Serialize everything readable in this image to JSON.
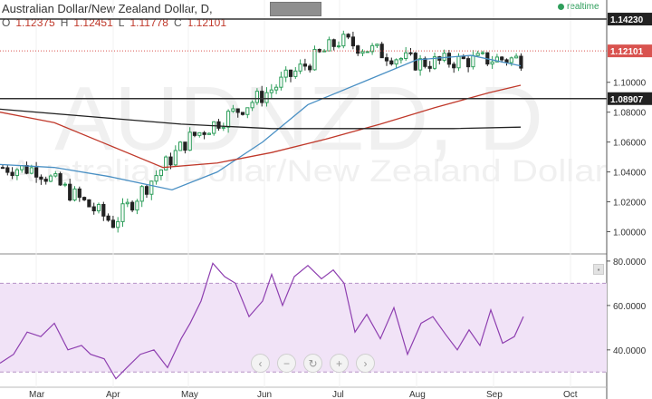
{
  "header": {
    "title": "Australian Dollar/New Zealand Dollar, D,",
    "o_label": "O",
    "o_value": "1.12375",
    "h_label": "H",
    "h_value": "1.12451",
    "l_label": "L",
    "l_value": "1.11778",
    "c_label": "C",
    "c_value": "1.12101",
    "realtime_label": "realtime"
  },
  "watermark": {
    "symbol": "AUDNZD, D",
    "name": "Australian Dollar/New Zealand Dollar"
  },
  "colors": {
    "up": "#2e9e5b",
    "down": "#222222",
    "ma_blue": "#4a90c4",
    "ma_red": "#c0392b",
    "ma_black": "#222222",
    "rsi": "#8e3fb0",
    "rsi_band": "#f1e3f7",
    "current_price_bg": "#d9534f",
    "level_bg": "#222222"
  },
  "chart_data": [
    {
      "type": "candlestick",
      "x_axis_labels": [
        "Mar",
        "Apr",
        "May",
        "Jun",
        "Jul",
        "Aug",
        "Sep",
        "Oct"
      ],
      "y_ticks": [
        "1.10000",
        "1.08000",
        "1.06000",
        "1.04000",
        "1.02000",
        "1.00000"
      ],
      "ylim": [
        0.99,
        1.149
      ],
      "horizontal_levels": [
        {
          "label": "1.14230",
          "value": 1.1423
        },
        {
          "label": "1.08907",
          "value": 1.08907
        }
      ],
      "current_price": {
        "label": "1.12101",
        "value": 1.12101
      },
      "monthly_closes": [
        {
          "month": "Mar",
          "value": 1.042
        },
        {
          "month": "Apr",
          "value": 1.006
        },
        {
          "month": "May",
          "value": 1.062
        },
        {
          "month": "Jun",
          "value": 1.092
        },
        {
          "month": "Jul",
          "value": 1.128
        },
        {
          "month": "Aug",
          "value": 1.113
        },
        {
          "month": "Sep",
          "value": 1.1155
        }
      ],
      "moving_averages": [
        {
          "color": "blue",
          "x": [
            0,
            60,
            120,
            190,
            240,
            290,
            340,
            400,
            460,
            520,
            575
          ],
          "values": [
            1.045,
            1.043,
            1.037,
            1.028,
            1.04,
            1.06,
            1.085,
            1.1,
            1.115,
            1.118,
            1.111
          ]
        },
        {
          "color": "red",
          "x": [
            0,
            60,
            120,
            180,
            240,
            300,
            360,
            420,
            480,
            540,
            575
          ],
          "values": [
            1.08,
            1.073,
            1.058,
            1.043,
            1.046,
            1.053,
            1.062,
            1.072,
            1.083,
            1.093,
            1.098
          ]
        },
        {
          "color": "black",
          "x": [
            0,
            100,
            200,
            300,
            400,
            500,
            575
          ],
          "values": [
            1.082,
            1.077,
            1.072,
            1.069,
            1.069,
            1.069,
            1.07
          ]
        }
      ]
    },
    {
      "type": "line",
      "indicator": "RSI",
      "y_ticks": [
        "80.0000",
        "60.0000",
        "40.0000"
      ],
      "ylim": [
        24,
        82
      ],
      "band": [
        30,
        70
      ],
      "x": [
        0,
        15,
        30,
        45,
        60,
        75,
        90,
        100,
        115,
        128,
        140,
        155,
        170,
        185,
        200,
        210,
        222,
        235,
        248,
        260,
        275,
        290,
        300,
        312,
        325,
        340,
        355,
        368,
        380,
        392,
        405,
        420,
        435,
        450,
        465,
        478,
        492,
        505,
        518,
        530,
        542,
        555,
        568,
        578
      ],
      "values": [
        34,
        38,
        48,
        46,
        52,
        40,
        42,
        38,
        36,
        27,
        32,
        38,
        40,
        32,
        45,
        52,
        62,
        79,
        73,
        70,
        55,
        62,
        74,
        60,
        73,
        78,
        72,
        76,
        70,
        48,
        56,
        45,
        59,
        38,
        52,
        55,
        47,
        40,
        49,
        42,
        58,
        43,
        46,
        55
      ]
    }
  ]
}
